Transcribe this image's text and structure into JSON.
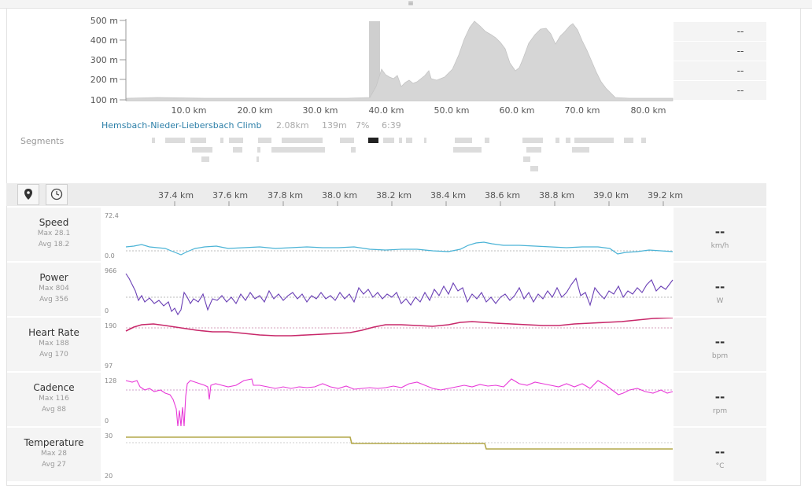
{
  "elevation": {
    "y_ticks": [
      "500 m",
      "400 m",
      "300 m",
      "200 m",
      "100 m"
    ],
    "x_ticks": [
      "10.0 km",
      "20.0 km",
      "30.0 km",
      "40.0 km",
      "50.0 km",
      "60.0 km",
      "70.0 km",
      "80.0 km"
    ],
    "side_values": [
      "--",
      "--",
      "--",
      "--"
    ],
    "colors": {
      "fill": "#d6d6d6",
      "highlight": "#cfcfcf"
    }
  },
  "segment": {
    "section_label": "Segments",
    "name": "Hemsbach-Nieder-Liebersbach Climb",
    "distance": "2.08km",
    "elevation_gain": "139m",
    "grade": "7%",
    "time": "6:39"
  },
  "toolbar": {
    "map_icon": "map-pin-icon",
    "clock_icon": "clock-icon",
    "distance_ticks": [
      "37.4 km",
      "37.6 km",
      "37.8 km",
      "38.0 km",
      "38.2 km",
      "38.4 km",
      "38.6 km",
      "38.8 km",
      "39.0 km",
      "39.2 km"
    ]
  },
  "metrics": [
    {
      "name": "Speed",
      "max": "Max 28.1",
      "avg": "Avg 18.2",
      "y_max": "72.4",
      "y_min": "0.0",
      "value": "--",
      "unit": "km/h",
      "color": "#4ab3d6"
    },
    {
      "name": "Power",
      "max": "Max 804",
      "avg": "Avg 356",
      "y_max": "966",
      "y_min": "0",
      "value": "--",
      "unit": "W",
      "color": "#6a3fb5"
    },
    {
      "name": "Heart Rate",
      "max": "Max 188",
      "avg": "Avg 170",
      "y_max": "190",
      "y_min": "97",
      "value": "--",
      "unit": "bpm",
      "color": "#c8286a"
    },
    {
      "name": "Cadence",
      "max": "Max 116",
      "avg": "Avg 88",
      "y_max": "128",
      "y_min": "0",
      "value": "--",
      "unit": "rpm",
      "color": "#e83ad8"
    },
    {
      "name": "Temperature",
      "max": "Max 28",
      "avg": "Avg 27",
      "y_max": "30",
      "y_min": "20",
      "value": "--",
      "unit": "°C",
      "color": "#b4a84a"
    }
  ]
}
